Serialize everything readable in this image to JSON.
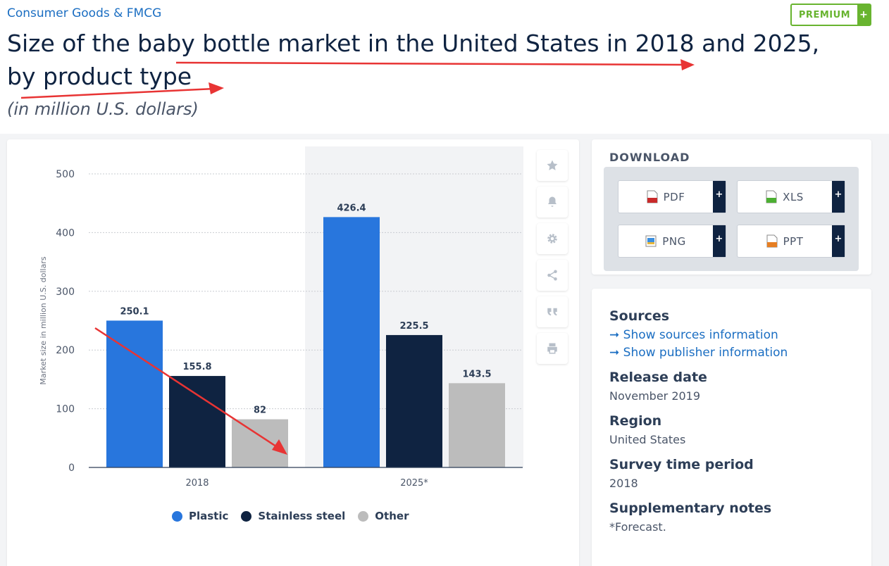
{
  "header": {
    "category": "Consumer Goods & FMCG",
    "premium_label": "PREMIUM",
    "premium_plus": "+",
    "title": "Size of the baby bottle market in the United States in 2018 and 2025, by product type",
    "subtitle": "(in million U.S. dollars)"
  },
  "colors": {
    "plastic": "#2876dd",
    "stainless": "#0f2341",
    "other": "#bcbcbc",
    "annotation_arrow": "#e83434"
  },
  "toolbar": {
    "icons": [
      "star-icon",
      "bell-icon",
      "gear-icon",
      "share-icon",
      "quote-icon",
      "print-icon"
    ]
  },
  "download": {
    "heading": "DOWNLOAD",
    "buttons": [
      {
        "label": "PDF",
        "plus": "+",
        "icon": "pdf-file-icon"
      },
      {
        "label": "XLS",
        "plus": "+",
        "icon": "xls-file-icon"
      },
      {
        "label": "PNG",
        "plus": "+",
        "icon": "png-file-icon"
      },
      {
        "label": "PPT",
        "plus": "+",
        "icon": "ppt-file-icon"
      }
    ]
  },
  "info": {
    "sources_heading": "Sources",
    "show_sources": "➞ Show sources information",
    "show_publisher": "➞ Show publisher information",
    "release_heading": "Release date",
    "release_value": "November 2019",
    "region_heading": "Region",
    "region_value": "United States",
    "survey_heading": "Survey time period",
    "survey_value": "2018",
    "notes_heading": "Supplementary notes",
    "notes_value": "*Forecast."
  },
  "chart_data": {
    "type": "bar",
    "categories": [
      "2018",
      "2025*"
    ],
    "series": [
      {
        "name": "Plastic",
        "values": [
          250.1,
          426.4
        ],
        "color": "#2876dd"
      },
      {
        "name": "Stainless steel",
        "values": [
          155.8,
          225.5
        ],
        "color": "#0f2341"
      },
      {
        "name": "Other",
        "values": [
          82,
          143.5
        ],
        "color": "#bcbcbc"
      }
    ],
    "data_labels": [
      [
        "250.1",
        "155.8",
        "82"
      ],
      [
        "426.4",
        "225.5",
        "143.5"
      ]
    ],
    "ylabel": "Market size in million U.S. dollars",
    "yticks": [
      0,
      100,
      200,
      300,
      400,
      500
    ],
    "ylim": [
      0,
      500
    ],
    "grid": true,
    "forecast_shaded": true,
    "legend_position": "bottom"
  }
}
